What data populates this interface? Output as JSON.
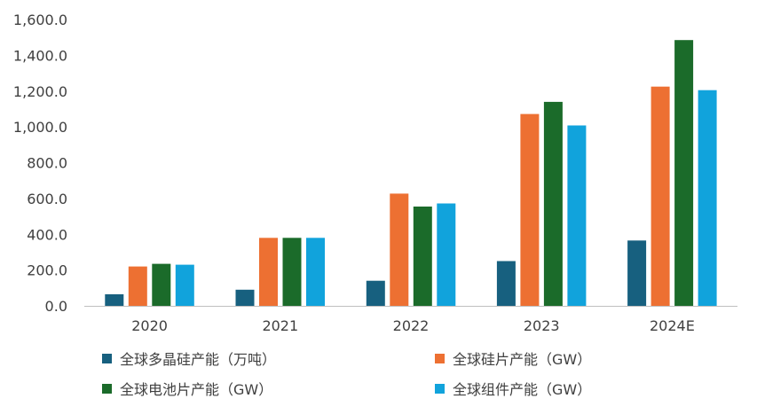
{
  "chart_data": {
    "type": "bar",
    "categories": [
      "2020",
      "2021",
      "2022",
      "2023",
      "2024E"
    ],
    "series": [
      {
        "name": "全球多晶硅产能（万吨）",
        "values": [
          65,
          90,
          140,
          250,
          365
        ],
        "color": "#17607f"
      },
      {
        "name": "全球硅片产能（GW）",
        "values": [
          220,
          380,
          627,
          1072,
          1225
        ],
        "color": "#ed7032"
      },
      {
        "name": "全球电池片产能（GW）",
        "values": [
          235,
          380,
          555,
          1140,
          1485
        ],
        "color": "#1b6b2a"
      },
      {
        "name": "全球组件产能（GW）",
        "values": [
          230,
          380,
          572,
          1008,
          1205
        ],
        "color": "#11a3dc"
      }
    ],
    "ylim": [
      0,
      1600
    ],
    "yticks": [
      0,
      200,
      400,
      600,
      800,
      1000,
      1200,
      1400,
      1600
    ],
    "ytick_labels": [
      "0.0",
      "200.0",
      "400.0",
      "600.0",
      "800.0",
      "1,000.0",
      "1,200.0",
      "1,400.0",
      "1,600.0"
    ],
    "grid": false,
    "legend_position": "bottom"
  }
}
